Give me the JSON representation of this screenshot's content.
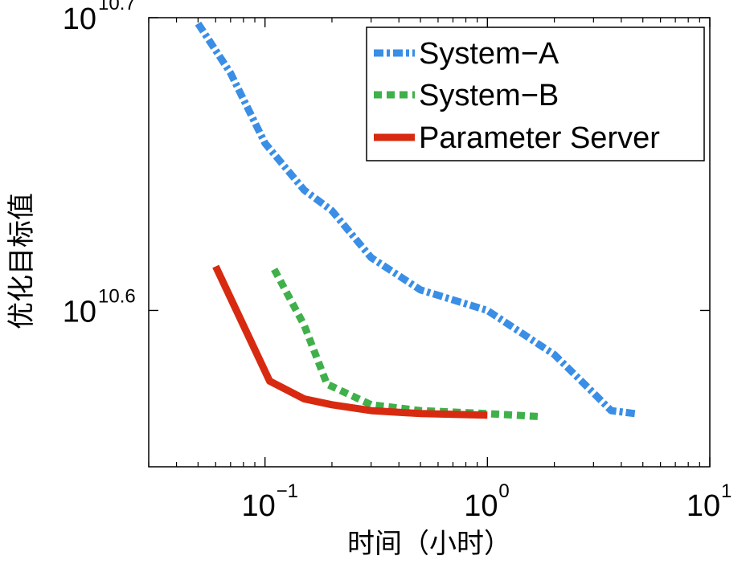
{
  "chart_data": {
    "type": "line",
    "title": "",
    "xlabel": "时间（小时）",
    "ylabel": "优化目标值",
    "x_scale": "log",
    "y_scale": "log",
    "xlim": [
      0.03,
      10
    ],
    "ylim": [
      10.547,
      10.7
    ],
    "x_ticks": [
      {
        "base": "10",
        "exp": "−1",
        "value": 0.1
      },
      {
        "base": "10",
        "exp": "0",
        "value": 1
      },
      {
        "base": "10",
        "exp": "1",
        "value": 10
      }
    ],
    "y_ticks": [
      {
        "base": "10",
        "exp": "10.7",
        "value": 10.7
      },
      {
        "base": "10",
        "exp": "10.6",
        "value": 10.6
      }
    ],
    "grid": false,
    "legend_position": "top-right",
    "series": [
      {
        "name": "System−A",
        "color": "#3a8ee6",
        "style": "dashdot",
        "points": [
          [
            0.05,
            10.698
          ],
          [
            0.07,
            10.681
          ],
          [
            0.1,
            10.657
          ],
          [
            0.15,
            10.641
          ],
          [
            0.2,
            10.634
          ],
          [
            0.3,
            10.618
          ],
          [
            0.5,
            10.607
          ],
          [
            1.0,
            10.6
          ],
          [
            2.0,
            10.585
          ],
          [
            3.0,
            10.572
          ],
          [
            3.6,
            10.566
          ],
          [
            4.6,
            10.565
          ]
        ]
      },
      {
        "name": "System−B",
        "color": "#3fb04a",
        "style": "dotted",
        "points": [
          [
            0.11,
            10.614
          ],
          [
            0.15,
            10.595
          ],
          [
            0.19,
            10.575
          ],
          [
            0.3,
            10.568
          ],
          [
            0.5,
            10.566
          ],
          [
            1.0,
            10.565
          ],
          [
            1.7,
            10.564
          ]
        ]
      },
      {
        "name": "Parameter Server",
        "color": "#d82a10",
        "style": "solid",
        "points": [
          [
            0.06,
            10.615
          ],
          [
            0.105,
            10.576
          ],
          [
            0.15,
            10.57
          ],
          [
            0.2,
            10.568
          ],
          [
            0.3,
            10.566
          ],
          [
            0.5,
            10.565
          ],
          [
            1.0,
            10.5645
          ]
        ]
      }
    ]
  }
}
